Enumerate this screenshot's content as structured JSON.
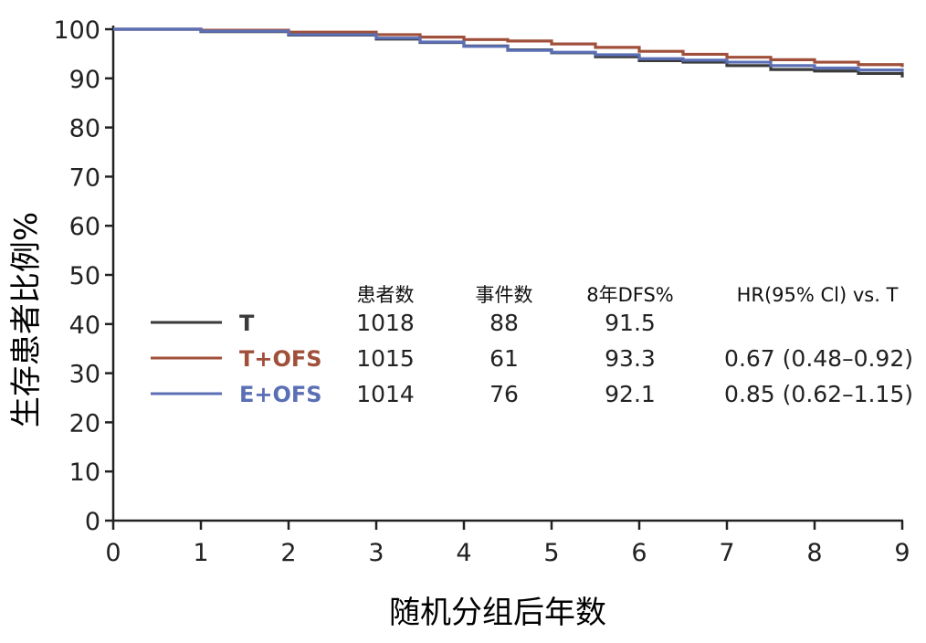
{
  "chart_data": {
    "type": "line",
    "xlabel": "随机分组后年数",
    "ylabel": "生存患者比例%",
    "xlim": [
      0,
      9
    ],
    "ylim": [
      0,
      100
    ],
    "x_ticks": [
      "0",
      "1",
      "2",
      "3",
      "4",
      "5",
      "6",
      "7",
      "8",
      "9"
    ],
    "y_ticks": [
      "0",
      "10",
      "20",
      "30",
      "40",
      "50",
      "60",
      "70",
      "80",
      "90",
      "100"
    ],
    "grid": false,
    "series": [
      {
        "name": "T",
        "color": "#3a3a3a",
        "x": [
          0,
          1,
          2,
          3,
          3.5,
          4,
          4.5,
          5,
          5.5,
          6,
          6.5,
          7,
          7.5,
          8,
          8.5,
          9
        ],
        "y": [
          100,
          99.5,
          98.8,
          98.0,
          97.3,
          96.6,
          95.8,
          95.2,
          94.4,
          93.6,
          93.3,
          92.6,
          91.8,
          91.5,
          91.0,
          90.2
        ]
      },
      {
        "name": "T+OFS",
        "color": "#a0503a",
        "x": [
          0,
          1,
          2,
          3,
          3.5,
          4,
          4.5,
          5,
          5.5,
          6,
          6.5,
          7,
          7.5,
          8,
          8.5,
          9
        ],
        "y": [
          100,
          99.8,
          99.4,
          98.9,
          98.4,
          97.9,
          97.6,
          97.0,
          96.3,
          95.5,
          94.9,
          94.3,
          93.8,
          93.3,
          92.8,
          92.3
        ]
      },
      {
        "name": "E+OFS",
        "color": "#5b6fb5",
        "x": [
          0,
          1,
          2,
          3,
          3.5,
          4,
          4.5,
          5,
          5.5,
          6,
          6.5,
          7,
          7.5,
          8,
          8.5,
          9
        ],
        "y": [
          100,
          99.6,
          98.9,
          98.2,
          97.4,
          96.5,
          95.7,
          95.3,
          94.8,
          94.0,
          93.7,
          93.3,
          92.6,
          92.1,
          91.7,
          91.3
        ]
      }
    ],
    "table": {
      "headers": [
        "患者数",
        "事件数",
        "8年DFS%",
        "HR(95% Cl) vs. T"
      ],
      "rows": [
        {
          "name": "T",
          "color": "#3a3a3a",
          "patients": "1018",
          "events": "88",
          "dfs": "91.5",
          "hr": ""
        },
        {
          "name": "T+OFS",
          "color": "#a0503a",
          "patients": "1015",
          "events": "61",
          "dfs": "93.3",
          "hr": "0.67 (0.48–0.92)"
        },
        {
          "name": "E+OFS",
          "color": "#5b6fb5",
          "patients": "1014",
          "events": "76",
          "dfs": "92.1",
          "hr": "0.85 (0.62–1.15)"
        }
      ]
    }
  }
}
